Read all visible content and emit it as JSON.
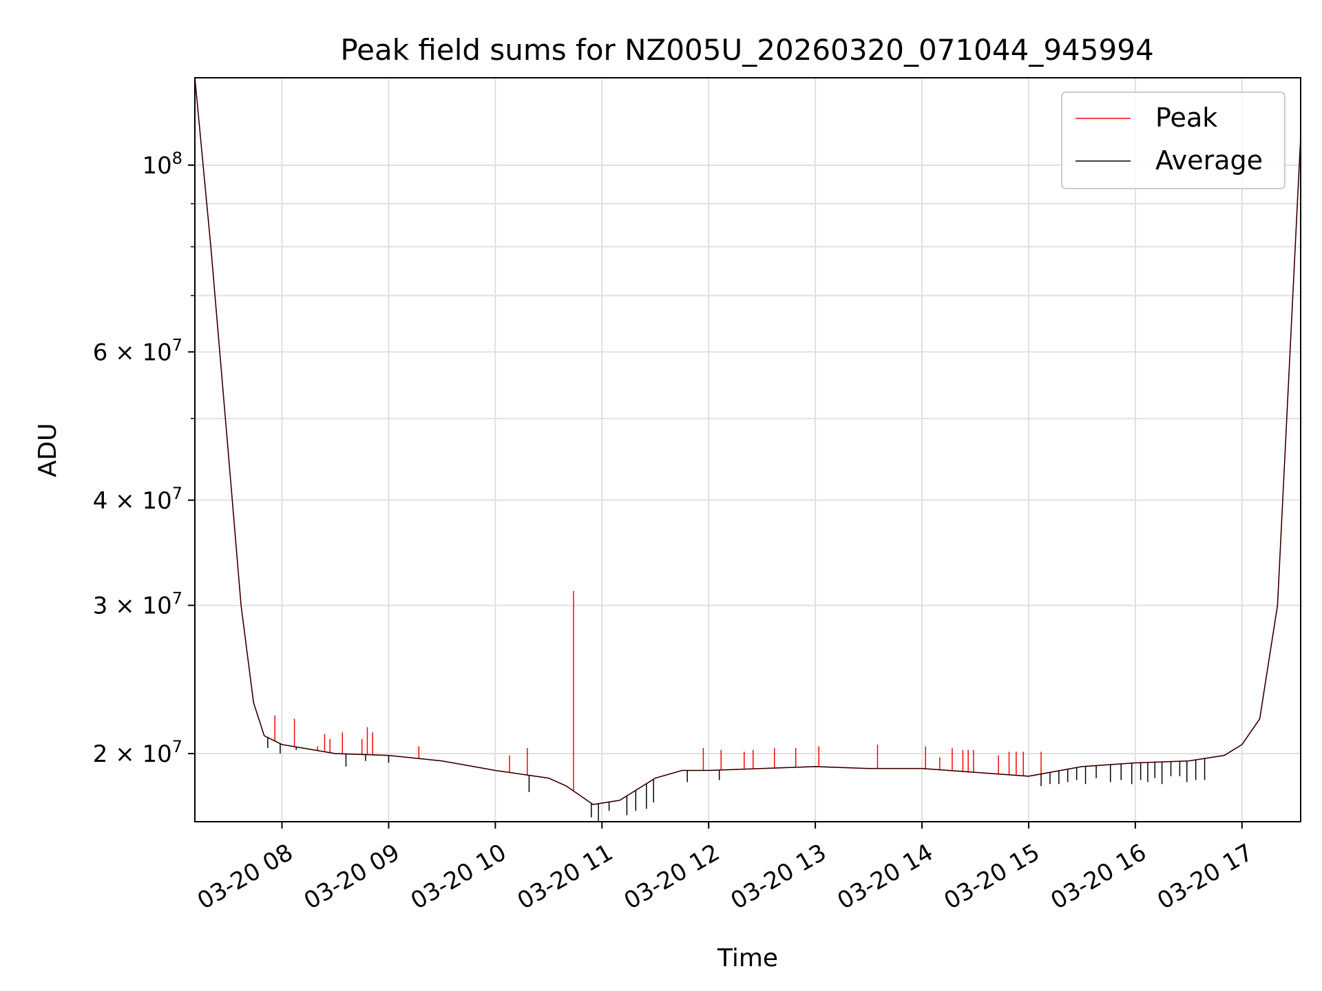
{
  "chart_data": {
    "type": "line",
    "title": "Peak field sums for NZ005U_20260320_071044_945994",
    "xlabel": "Time",
    "ylabel": "ADU",
    "yscale": "log",
    "ylim": [
      16600000,
      127000000
    ],
    "xlim": [
      "03-20 07:11",
      "03-20 17:33"
    ],
    "grid": true,
    "legend_position": "top-right",
    "colors": {
      "peak": "#ff0000",
      "average": "#000000",
      "grid": "#e0e0e0"
    },
    "x_ticks": [
      "03-20 08",
      "03-20 09",
      "03-20 10",
      "03-20 11",
      "03-20 12",
      "03-20 13",
      "03-20 14",
      "03-20 15",
      "03-20 16",
      "03-20 17"
    ],
    "y_ticks": [
      {
        "value": 20000000,
        "mantissa": "2",
        "exp": "7"
      },
      {
        "value": 30000000,
        "mantissa": "3",
        "exp": "7"
      },
      {
        "value": 40000000,
        "mantissa": "4",
        "exp": "7"
      },
      {
        "value": 60000000,
        "mantissa": "6",
        "exp": "7"
      },
      {
        "value": 100000000,
        "mantissa": "",
        "exp": "8"
      }
    ],
    "y_minor_ticks": [
      50000000,
      70000000,
      80000000,
      90000000
    ],
    "series": [
      {
        "name": "Peak",
        "color": "#ff0000",
        "x": [
          "03-20 07:11",
          "03-20 07:20",
          "03-20 07:30",
          "03-20 07:37",
          "03-20 07:44",
          "03-20 07:50",
          "03-20 08:00",
          "03-20 08:30",
          "03-20 09:00",
          "03-20 09:30",
          "03-20 10:00",
          "03-20 10:30",
          "03-20 10:40",
          "03-20 10:55",
          "03-20 11:10",
          "03-20 11:30",
          "03-20 11:45",
          "03-20 12:00",
          "03-20 12:30",
          "03-20 13:00",
          "03-20 13:30",
          "03-20 14:00",
          "03-20 14:30",
          "03-20 15:00",
          "03-20 15:30",
          "03-20 16:00",
          "03-20 16:30",
          "03-20 16:50",
          "03-20 17:00",
          "03-20 17:10",
          "03-20 17:20",
          "03-20 17:33"
        ],
        "values": [
          127000000,
          80000000,
          45000000,
          30000000,
          23000000,
          21000000,
          20500000,
          20000000,
          19900000,
          19600000,
          19100000,
          18700000,
          18300000,
          17400000,
          17600000,
          18700000,
          19100000,
          19100000,
          19200000,
          19300000,
          19200000,
          19200000,
          19000000,
          18800000,
          19300000,
          19500000,
          19600000,
          19900000,
          20500000,
          22000000,
          30000000,
          108000000
        ]
      },
      {
        "name": "Average",
        "color": "#000000",
        "x": [
          "03-20 07:11",
          "03-20 07:20",
          "03-20 07:30",
          "03-20 07:37",
          "03-20 07:44",
          "03-20 07:50",
          "03-20 08:00",
          "03-20 08:30",
          "03-20 09:00",
          "03-20 09:30",
          "03-20 10:00",
          "03-20 10:30",
          "03-20 10:40",
          "03-20 10:55",
          "03-20 11:10",
          "03-20 11:30",
          "03-20 11:45",
          "03-20 12:00",
          "03-20 12:30",
          "03-20 13:00",
          "03-20 13:30",
          "03-20 14:00",
          "03-20 14:30",
          "03-20 15:00",
          "03-20 15:30",
          "03-20 16:00",
          "03-20 16:30",
          "03-20 16:50",
          "03-20 17:00",
          "03-20 17:10",
          "03-20 17:20",
          "03-20 17:33"
        ],
        "values": [
          127000000,
          80000000,
          45000000,
          30000000,
          23000000,
          21000000,
          20500000,
          20000000,
          19900000,
          19600000,
          19100000,
          18700000,
          18300000,
          17400000,
          17600000,
          18700000,
          19100000,
          19100000,
          19200000,
          19300000,
          19200000,
          19200000,
          19000000,
          18800000,
          19300000,
          19500000,
          19600000,
          19900000,
          20500000,
          22000000,
          30000000,
          108000000
        ]
      }
    ],
    "peak_spikes": [
      {
        "x": "03-20 07:56",
        "top": 22200000
      },
      {
        "x": "03-20 08:07",
        "top": 22000000
      },
      {
        "x": "03-20 08:20",
        "top": 20400000
      },
      {
        "x": "03-20 08:24",
        "top": 21100000
      },
      {
        "x": "03-20 08:27",
        "top": 20800000
      },
      {
        "x": "03-20 08:34",
        "top": 21200000
      },
      {
        "x": "03-20 08:45",
        "top": 20800000
      },
      {
        "x": "03-20 08:48",
        "top": 21500000
      },
      {
        "x": "03-20 08:51",
        "top": 21200000
      },
      {
        "x": "03-20 09:17",
        "top": 20400000
      },
      {
        "x": "03-20 10:08",
        "top": 19900000
      },
      {
        "x": "03-20 10:18",
        "top": 20300000
      },
      {
        "x": "03-20 10:44",
        "top": 31200000
      },
      {
        "x": "03-20 11:57",
        "top": 20300000
      },
      {
        "x": "03-20 12:07",
        "top": 20200000
      },
      {
        "x": "03-20 12:20",
        "top": 20100000
      },
      {
        "x": "03-20 12:25",
        "top": 20200000
      },
      {
        "x": "03-20 12:37",
        "top": 20300000
      },
      {
        "x": "03-20 12:49",
        "top": 20300000
      },
      {
        "x": "03-20 13:02",
        "top": 20400000
      },
      {
        "x": "03-20 13:35",
        "top": 20500000
      },
      {
        "x": "03-20 14:02",
        "top": 20400000
      },
      {
        "x": "03-20 14:10",
        "top": 19800000
      },
      {
        "x": "03-20 14:17",
        "top": 20300000
      },
      {
        "x": "03-20 14:23",
        "top": 20200000
      },
      {
        "x": "03-20 14:26",
        "top": 20200000
      },
      {
        "x": "03-20 14:29",
        "top": 20200000
      },
      {
        "x": "03-20 14:43",
        "top": 19900000
      },
      {
        "x": "03-20 14:49",
        "top": 20100000
      },
      {
        "x": "03-20 14:53",
        "top": 20100000
      },
      {
        "x": "03-20 14:57",
        "top": 20100000
      },
      {
        "x": "03-20 15:07",
        "top": 20100000
      }
    ],
    "average_dips": [
      {
        "x": "03-20 07:52",
        "bottom": 20300000
      },
      {
        "x": "03-20 07:59",
        "bottom": 20000000
      },
      {
        "x": "03-20 08:08",
        "bottom": 20200000
      },
      {
        "x": "03-20 08:36",
        "bottom": 19300000
      },
      {
        "x": "03-20 08:47",
        "bottom": 19600000
      },
      {
        "x": "03-20 09:00",
        "bottom": 19500000
      },
      {
        "x": "03-20 10:19",
        "bottom": 18000000
      },
      {
        "x": "03-20 10:54",
        "bottom": 16800000
      },
      {
        "x": "03-20 10:58",
        "bottom": 16600000
      },
      {
        "x": "03-20 11:04",
        "bottom": 17100000
      },
      {
        "x": "03-20 11:14",
        "bottom": 16900000
      },
      {
        "x": "03-20 11:19",
        "bottom": 17100000
      },
      {
        "x": "03-20 11:25",
        "bottom": 17200000
      },
      {
        "x": "03-20 11:29",
        "bottom": 17500000
      },
      {
        "x": "03-20 11:48",
        "bottom": 18500000
      },
      {
        "x": "03-20 12:06",
        "bottom": 18600000
      },
      {
        "x": "03-20 15:07",
        "bottom": 18300000
      },
      {
        "x": "03-20 15:12",
        "bottom": 18400000
      },
      {
        "x": "03-20 15:17",
        "bottom": 18400000
      },
      {
        "x": "03-20 15:22",
        "bottom": 18500000
      },
      {
        "x": "03-20 15:27",
        "bottom": 18600000
      },
      {
        "x": "03-20 15:32",
        "bottom": 18400000
      },
      {
        "x": "03-20 15:38",
        "bottom": 18700000
      },
      {
        "x": "03-20 15:46",
        "bottom": 18500000
      },
      {
        "x": "03-20 15:52",
        "bottom": 18600000
      },
      {
        "x": "03-20 15:58",
        "bottom": 18400000
      },
      {
        "x": "03-20 16:03",
        "bottom": 18600000
      },
      {
        "x": "03-20 16:07",
        "bottom": 18500000
      },
      {
        "x": "03-20 16:11",
        "bottom": 18700000
      },
      {
        "x": "03-20 16:15",
        "bottom": 18400000
      },
      {
        "x": "03-20 16:20",
        "bottom": 18800000
      },
      {
        "x": "03-20 16:25",
        "bottom": 18800000
      },
      {
        "x": "03-20 16:29",
        "bottom": 18500000
      },
      {
        "x": "03-20 16:34",
        "bottom": 18600000
      },
      {
        "x": "03-20 16:39",
        "bottom": 18600000
      }
    ]
  }
}
